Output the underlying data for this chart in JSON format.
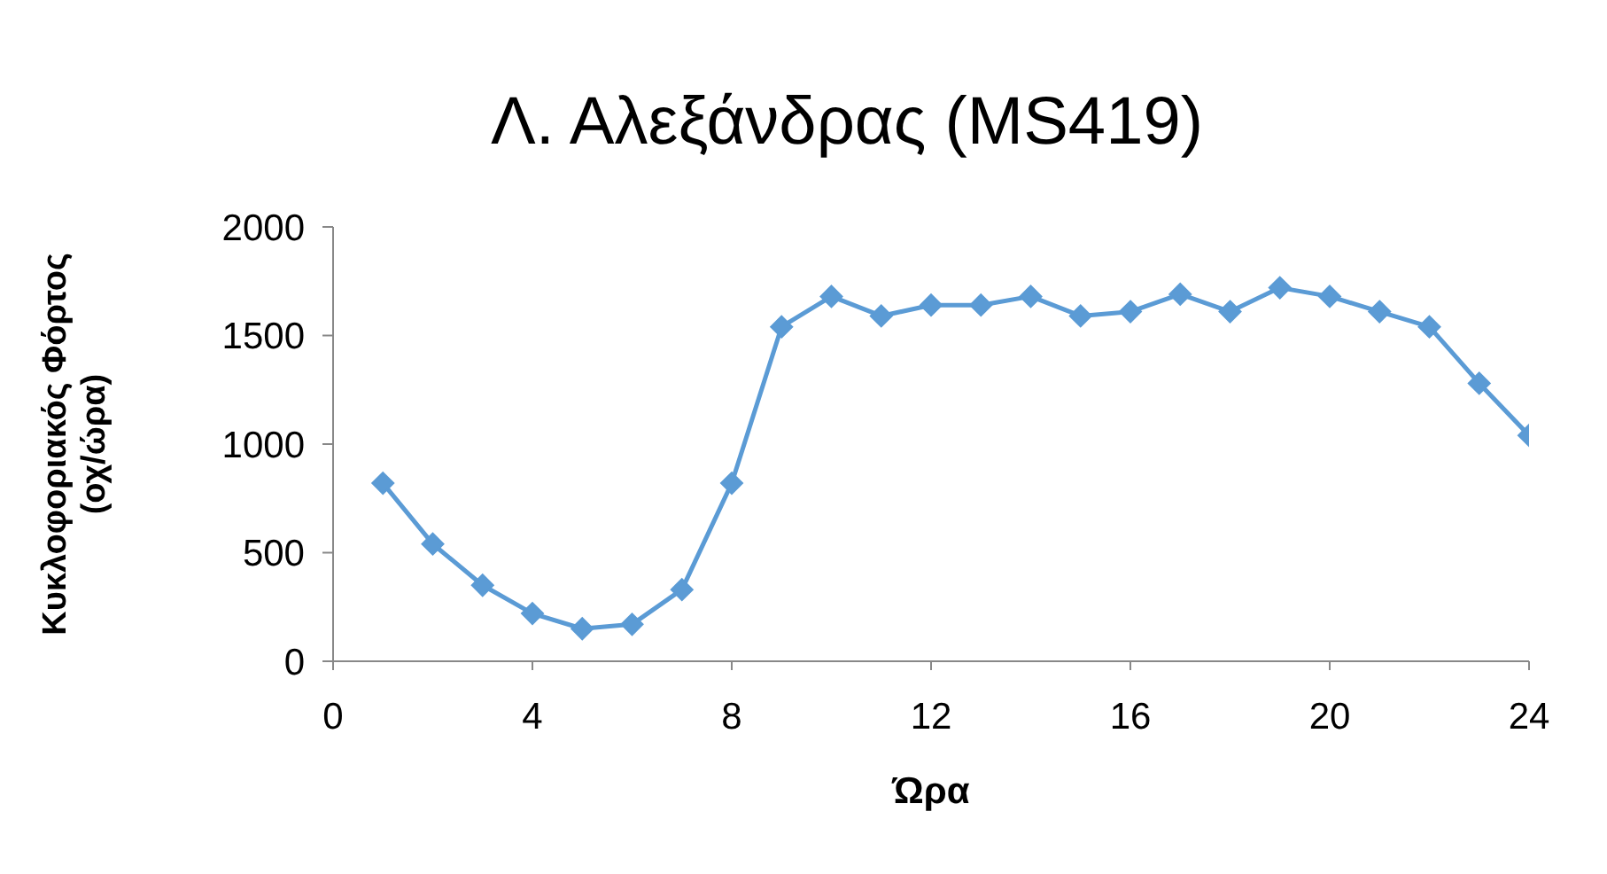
{
  "chart_data": {
    "type": "line",
    "title": "Λ. Αλεξάνδρας (MS419)",
    "xlabel": "Ώρα",
    "ylabel": "Κυκλοφοριακός Φόρτος\n(οχ/ώρα)",
    "x": [
      1,
      2,
      3,
      4,
      5,
      6,
      7,
      8,
      9,
      10,
      11,
      12,
      13,
      14,
      15,
      16,
      17,
      18,
      19,
      20,
      21,
      22,
      23,
      24
    ],
    "series": [
      {
        "color": "#5b9bd5",
        "values": [
          820,
          540,
          350,
          220,
          150,
          170,
          330,
          820,
          1540,
          1680,
          1590,
          1640,
          1640,
          1680,
          1590,
          1610,
          1690,
          1610,
          1720,
          1680,
          1610,
          1540,
          1280,
          1040
        ]
      }
    ],
    "xlim": [
      0,
      24
    ],
    "xticks": [
      0,
      4,
      8,
      12,
      16,
      20,
      24
    ],
    "ylim": [
      0,
      2000
    ],
    "yticks": [
      0,
      500,
      1000,
      1500,
      2000
    ],
    "grid": false,
    "legend": false,
    "marker": "diamond",
    "line_style": "solid"
  }
}
